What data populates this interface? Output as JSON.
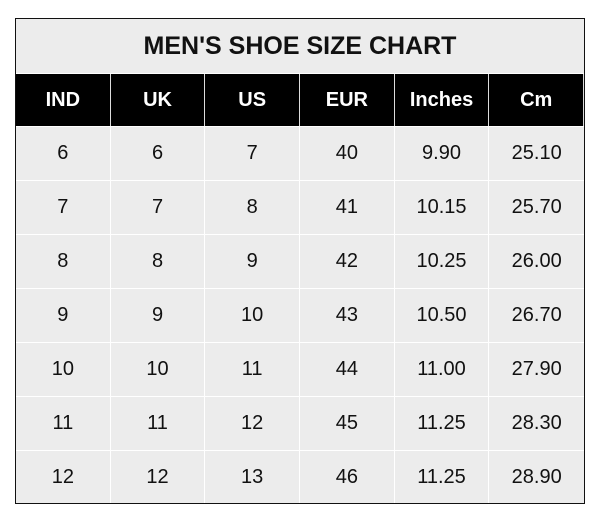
{
  "title": "MEN'S SHOE SIZE CHART",
  "headers": [
    "IND",
    "UK",
    "US",
    "EUR",
    "Inches",
    "Cm"
  ],
  "rows": [
    [
      "6",
      "6",
      "7",
      "40",
      "9.90",
      "25.10"
    ],
    [
      "7",
      "7",
      "8",
      "41",
      "10.15",
      "25.70"
    ],
    [
      "8",
      "8",
      "9",
      "42",
      "10.25",
      "26.00"
    ],
    [
      "9",
      "9",
      "10",
      "43",
      "10.50",
      "26.70"
    ],
    [
      "10",
      "10",
      "11",
      "44",
      "11.00",
      "27.90"
    ],
    [
      "11",
      "11",
      "12",
      "45",
      "11.25",
      "28.30"
    ],
    [
      "12",
      "12",
      "13",
      "46",
      "11.25",
      "28.90"
    ]
  ],
  "colors": {
    "header_bg": "#000000",
    "body_bg": "#ececec",
    "grid": "#ffffff"
  }
}
